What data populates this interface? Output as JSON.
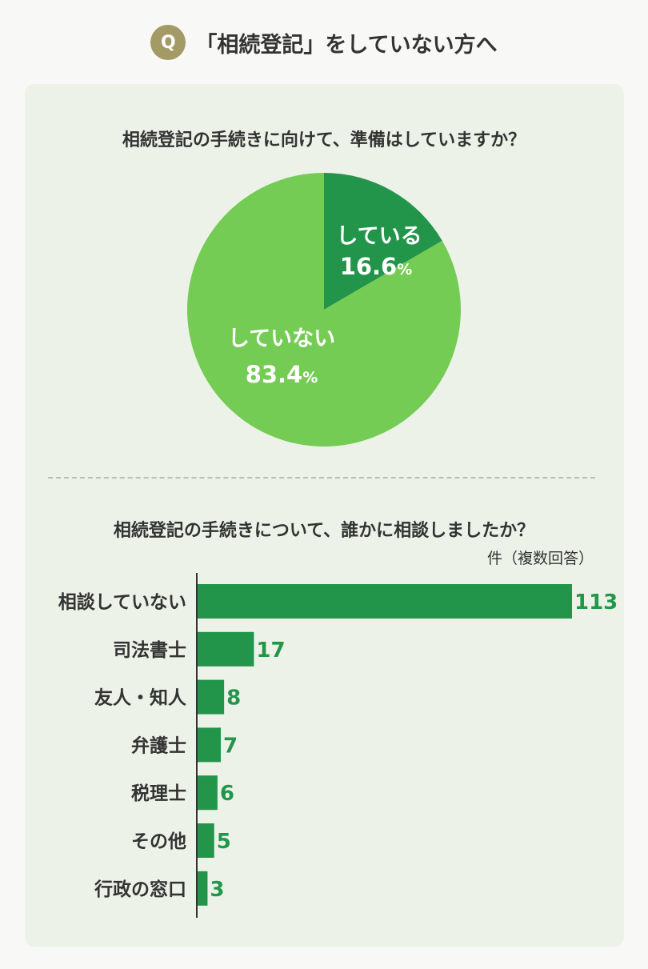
{
  "header": {
    "badge": "Q",
    "title": "「相続登記」をしていない方へ"
  },
  "colors": {
    "badge": "#a39a65",
    "panel": "#edf2e9",
    "pie_light": "#74cc55",
    "pie_dark": "#22954a",
    "bar": "#22954a",
    "value_text": "#229749"
  },
  "chart_data": [
    {
      "type": "pie",
      "title": "相続登記の手続きに向けて、準備はしていますか？",
      "slices": [
        {
          "label": "している",
          "value": 16.6,
          "display": "16.6",
          "unit": "%",
          "color": "#22954a"
        },
        {
          "label": "していない",
          "value": 83.4,
          "display": "83.4",
          "unit": "%",
          "color": "#74cc55"
        }
      ]
    },
    {
      "type": "bar",
      "orientation": "horizontal",
      "title": "相続登記の手続きについて、誰かに相談しましたか？",
      "unit_label": "件（複数回答）",
      "categories": [
        "相談していない",
        "司法書士",
        "友人・知人",
        "弁護士",
        "税理士",
        "その他",
        "行政の窓口"
      ],
      "values": [
        113,
        17,
        8,
        7,
        6,
        5,
        3
      ],
      "xlim": [
        0,
        113
      ],
      "grid": false
    }
  ]
}
